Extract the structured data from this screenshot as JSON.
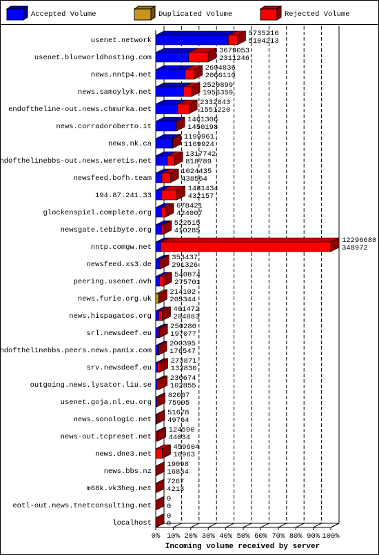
{
  "chart_data": {
    "type": "bar3d-horizontal",
    "x_label": "Incoming volume received by server",
    "categories": [
      "usenet.network",
      "usenet.blueworldhosting.com",
      "news.nntp4.net",
      "news.samoylyk.net",
      "endoftheline-out.news.chmurka.net",
      "news.corradoroberto.it",
      "news.nk.ca",
      "endofthelinebbs-out.news.weretis.net",
      "newsfeed.bofh.team",
      "194.87.241.33",
      "glockenspiel.complete.org",
      "newsgate.tebibyte.org",
      "nntp.comgw.net",
      "newsfeed.xs3.de",
      "peering.usenet.ovh",
      "news.furie.org.uk",
      "news.hispagatos.org",
      "srl.newsdeef.eu",
      "endofthelinebbs.peers.news.panix.com",
      "srv.newsdeef.eu",
      "outgoing.news.lysator.liu.se",
      "usenet.goja.nl.eu.org",
      "news.sonologic.net",
      "news-out.tcpreset.net",
      "news.dne3.net",
      "news.bbs.nz",
      "m68k.vk3heg.net",
      "eotl-out.news.tnetconsulting.net",
      "localhost"
    ],
    "totals": [
      5735216,
      3679053,
      2694836,
      2520899,
      2332843,
      1461306,
      1199961,
      1317742,
      1024435,
      1481434,
      678421,
      522515,
      12296680,
      353437,
      540874,
      214102,
      461472,
      250280,
      200395,
      273871,
      230674,
      82007,
      51678,
      124590,
      459604,
      19098,
      7267,
      0,
      0
    ],
    "series": [
      {
        "name": "Accepted Volume",
        "color": "#0000ff",
        "values": [
          5104213,
          2311246,
          2066110,
          1956359,
          1551220,
          1450198,
          1169924,
          818789,
          438564,
          432157,
          424007,
          410285,
          348972,
          291326,
          275701,
          null,
          204883,
          197077,
          176547,
          133830,
          102855,
          75995,
          49764,
          44034,
          16963,
          16834,
          null,
          0,
          0
        ]
      },
      {
        "name": "Duplicated Volume",
        "color": "#c8961e",
        "values": [
          null,
          null,
          null,
          null,
          null,
          null,
          null,
          null,
          null,
          null,
          null,
          null,
          null,
          null,
          null,
          205344,
          null,
          null,
          null,
          null,
          null,
          null,
          null,
          null,
          null,
          null,
          4213,
          null,
          null
        ]
      },
      {
        "name": "Rejected Volume",
        "color": "#ff0000"
      }
    ],
    "xlim": [
      0,
      12296680
    ],
    "xticks": [
      {
        "value": 0,
        "label": "0%"
      },
      {
        "value": 1229668,
        "label": "10%"
      },
      {
        "value": 2459336,
        "label": "20%"
      },
      {
        "value": 3689004,
        "label": "30%"
      },
      {
        "value": 4918672,
        "label": "40%"
      },
      {
        "value": 6148340,
        "label": "50%"
      },
      {
        "value": 7378008,
        "label": "60%"
      },
      {
        "value": 8607676,
        "label": "70%"
      },
      {
        "value": 9837344,
        "label": "80%"
      },
      {
        "value": 11067012,
        "label": "90%"
      },
      {
        "value": 12296680,
        "label": "100%"
      }
    ],
    "grid": true
  }
}
